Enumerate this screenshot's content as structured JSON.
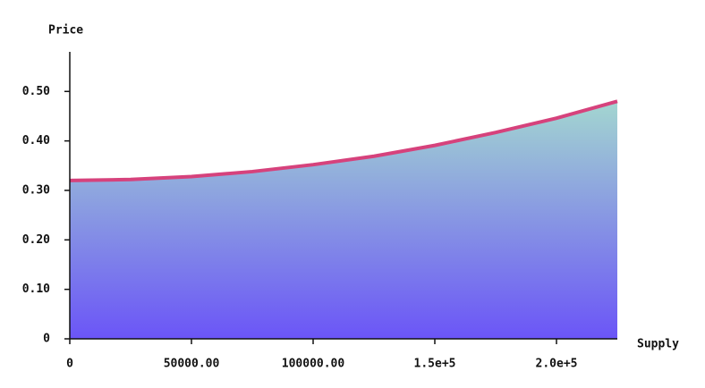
{
  "chart_data": {
    "type": "area",
    "x_label": "Supply",
    "y_label": "Price",
    "x": [
      0,
      25000,
      50000,
      75000,
      100000,
      125000,
      150000,
      175000,
      200000,
      225000
    ],
    "series": [
      {
        "name": "Price",
        "color": "#d6427c",
        "values": [
          0.32,
          0.322,
          0.328,
          0.338,
          0.352,
          0.369,
          0.391,
          0.417,
          0.446,
          0.48
        ]
      }
    ],
    "fill_top_color": "#a3d6d0",
    "fill_bottom_color": "#6b55f7",
    "xlim": [
      0,
      225000
    ],
    "xticks": [
      0,
      {
        "value": 50000,
        "label": "50000.00"
      },
      {
        "value": 100000,
        "label": "100000.00"
      },
      {
        "value": 150000,
        "label": "1.5e+5"
      },
      {
        "value": 200000,
        "label": "2.0e+5"
      }
    ],
    "ylim": [
      0,
      0.58
    ],
    "yticks": [
      0,
      {
        "value": 0.1,
        "label": "0.10"
      },
      {
        "value": 0.2,
        "label": "0.20"
      },
      {
        "value": 0.3,
        "label": "0.30"
      },
      {
        "value": 0.4,
        "label": "0.40"
      },
      {
        "value": 0.5,
        "label": "0.50"
      }
    ],
    "grid": false
  }
}
